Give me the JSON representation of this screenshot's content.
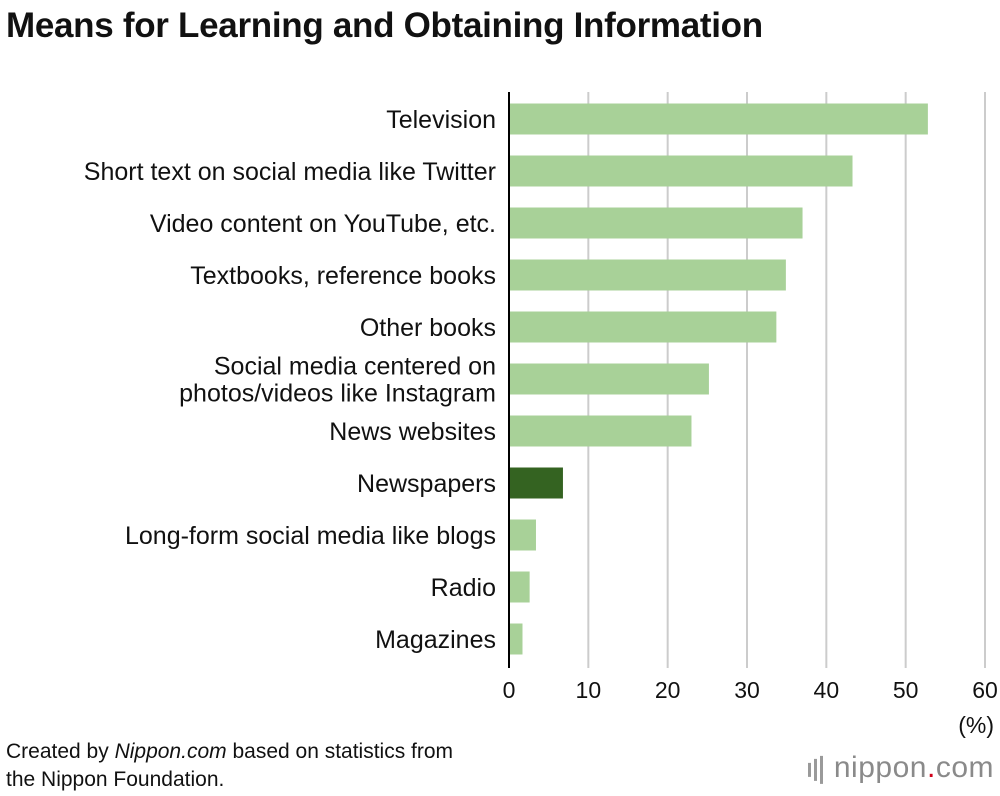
{
  "title": "Means for Learning and Obtaining Information",
  "unit_label": "(%)",
  "source": {
    "prefix": "Created by ",
    "site": "Nippon.com",
    "suffix": " based on statistics from",
    "line2": "the Nippon Foundation."
  },
  "logo": {
    "name": "nippon",
    "dot": ".",
    "tld": "com"
  },
  "colors": {
    "bar": "#a8d198",
    "highlight": "#346321",
    "grid": "#cccccc",
    "axis": "#000000"
  },
  "chart_data": {
    "type": "bar",
    "orientation": "horizontal",
    "title": "Means for Learning and Obtaining Information",
    "categories": [
      [
        "Television"
      ],
      [
        "Short text on social media like Twitter"
      ],
      [
        "Video content on YouTube, etc."
      ],
      [
        "Textbooks, reference books"
      ],
      [
        "Other books"
      ],
      [
        "Social media centered on",
        "photos/videos like Instagram"
      ],
      [
        "News websites"
      ],
      [
        "Newspapers"
      ],
      [
        "Long-form social media like blogs"
      ],
      [
        "Radio"
      ],
      [
        "Magazines"
      ]
    ],
    "values": [
      52.8,
      43.3,
      37.0,
      34.9,
      33.7,
      25.2,
      23.0,
      6.8,
      3.4,
      2.6,
      1.7
    ],
    "highlight_index": 7,
    "xlim": [
      0,
      60
    ],
    "xticks": [
      0,
      10,
      20,
      30,
      40,
      50,
      60
    ],
    "xlabel": "(%)",
    "grid": true
  }
}
